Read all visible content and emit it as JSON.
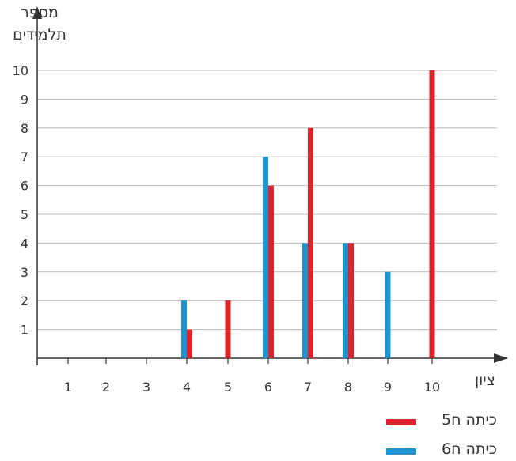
{
  "chart_data": {
    "type": "bar",
    "ylabel": [
      "מספר",
      "תלמידים"
    ],
    "xlabel": "ציון",
    "categories": [
      "1",
      "2",
      "3",
      "4",
      "5",
      "6",
      "7",
      "8",
      "9",
      "10"
    ],
    "ylim": [
      0,
      10
    ],
    "yticks": [
      "1",
      "2",
      "3",
      "4",
      "5",
      "6",
      "7",
      "8",
      "9",
      "10"
    ],
    "grid": true,
    "legend_position": "bottom-right",
    "series": [
      {
        "name": "כיתה ח5",
        "color": "#d9262e",
        "values": [
          0,
          0,
          0,
          1,
          2,
          6,
          8,
          4,
          0,
          10
        ]
      },
      {
        "name": "כיתה ח6",
        "color": "#1f93cf",
        "values": [
          0,
          0,
          0,
          2,
          0,
          7,
          4,
          4,
          3,
          0
        ]
      }
    ]
  }
}
